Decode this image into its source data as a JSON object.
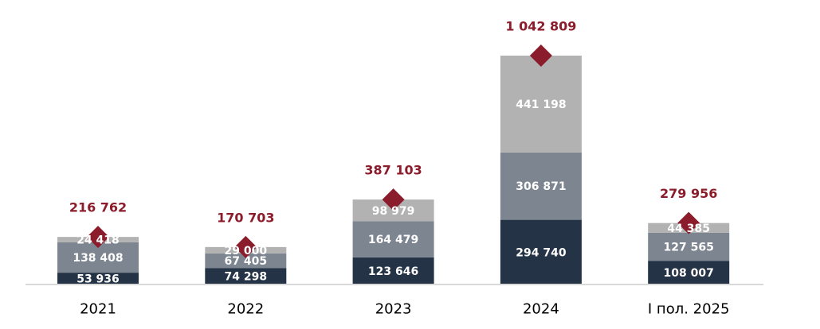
{
  "chart_data": {
    "type": "bar",
    "stacked": true,
    "categories": [
      "2021",
      "2022",
      "2023",
      "2024",
      "I пол. 2025"
    ],
    "series": [
      {
        "values": [
          53936,
          74298,
          123646,
          294740,
          108007
        ],
        "color": "#243346"
      },
      {
        "values": [
          138408,
          67405,
          164479,
          306871,
          127565
        ],
        "color": "#7d8591"
      },
      {
        "values": [
          24418,
          29000,
          98979,
          441198,
          44385
        ],
        "color": "#b2b2b2"
      }
    ],
    "value_labels": [
      [
        "53 936",
        "74 298",
        "123 646",
        "294 740",
        "108 007"
      ],
      [
        "138 408",
        "67 405",
        "164 479",
        "306 871",
        "127 565"
      ],
      [
        "24 418",
        "29 000",
        "98 979",
        "441 198",
        "44 385"
      ]
    ],
    "totals": [
      216762,
      170703,
      387103,
      1042809,
      279956
    ],
    "total_labels": [
      "216 762",
      "170 703",
      "387 103",
      "1 042 809",
      "279 956"
    ],
    "total_marker": "diamond",
    "total_color": "#8b1c2b",
    "ylim": [
      0,
      1042809
    ],
    "grid": false,
    "legend": "none"
  }
}
